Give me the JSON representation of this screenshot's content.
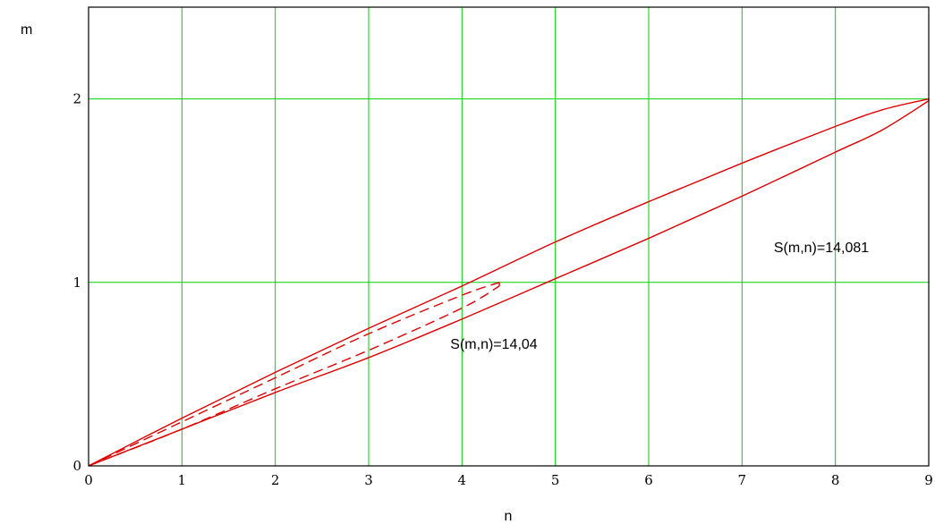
{
  "chart_data": {
    "type": "line",
    "xlabel": "n",
    "ylabel": "m",
    "xlim": [
      0,
      9
    ],
    "ylim": [
      0,
      2.5
    ],
    "x_ticks": [
      0,
      1,
      2,
      3,
      4,
      5,
      6,
      7,
      8,
      9
    ],
    "x_tick_labels": [
      "0",
      "1",
      "2",
      "3",
      "4",
      "5",
      "6",
      "7",
      "8",
      "9"
    ],
    "y_ticks": [
      0,
      1,
      2
    ],
    "y_tick_labels": [
      "0",
      "1",
      "2"
    ],
    "grid": true,
    "colors": {
      "grid": "#00d000",
      "series": "#e00000",
      "frame": "#000000"
    },
    "series": [
      {
        "style": "solid",
        "upper": {
          "x": [
            0,
            1,
            2,
            3,
            4,
            5,
            6,
            7,
            8,
            8.5,
            9
          ],
          "y": [
            0,
            0.26,
            0.51,
            0.75,
            0.98,
            1.22,
            1.44,
            1.65,
            1.85,
            1.94,
            2.0
          ]
        },
        "lower": {
          "x": [
            0,
            1,
            2,
            3,
            4,
            5,
            6,
            7,
            8,
            8.5,
            9
          ],
          "y": [
            0,
            0.2,
            0.4,
            0.59,
            0.8,
            1.02,
            1.24,
            1.47,
            1.71,
            1.83,
            1.99
          ]
        }
      },
      {
        "style": "dashed",
        "upper": {
          "x": [
            0,
            1,
            2,
            3,
            4,
            4.4
          ],
          "y": [
            0,
            0.24,
            0.48,
            0.72,
            0.93,
            1.0
          ]
        },
        "lower": {
          "x": [
            0,
            1,
            2,
            3,
            4,
            4.4
          ],
          "y": [
            0,
            0.2,
            0.42,
            0.63,
            0.86,
            0.98
          ]
        }
      }
    ],
    "annotations": [
      {
        "text": "S(m,n)=14,081",
        "x": 7.8,
        "y": 1.2
      },
      {
        "text": "S(m,n)=14,04",
        "x": 4.35,
        "y": 0.64
      }
    ]
  }
}
